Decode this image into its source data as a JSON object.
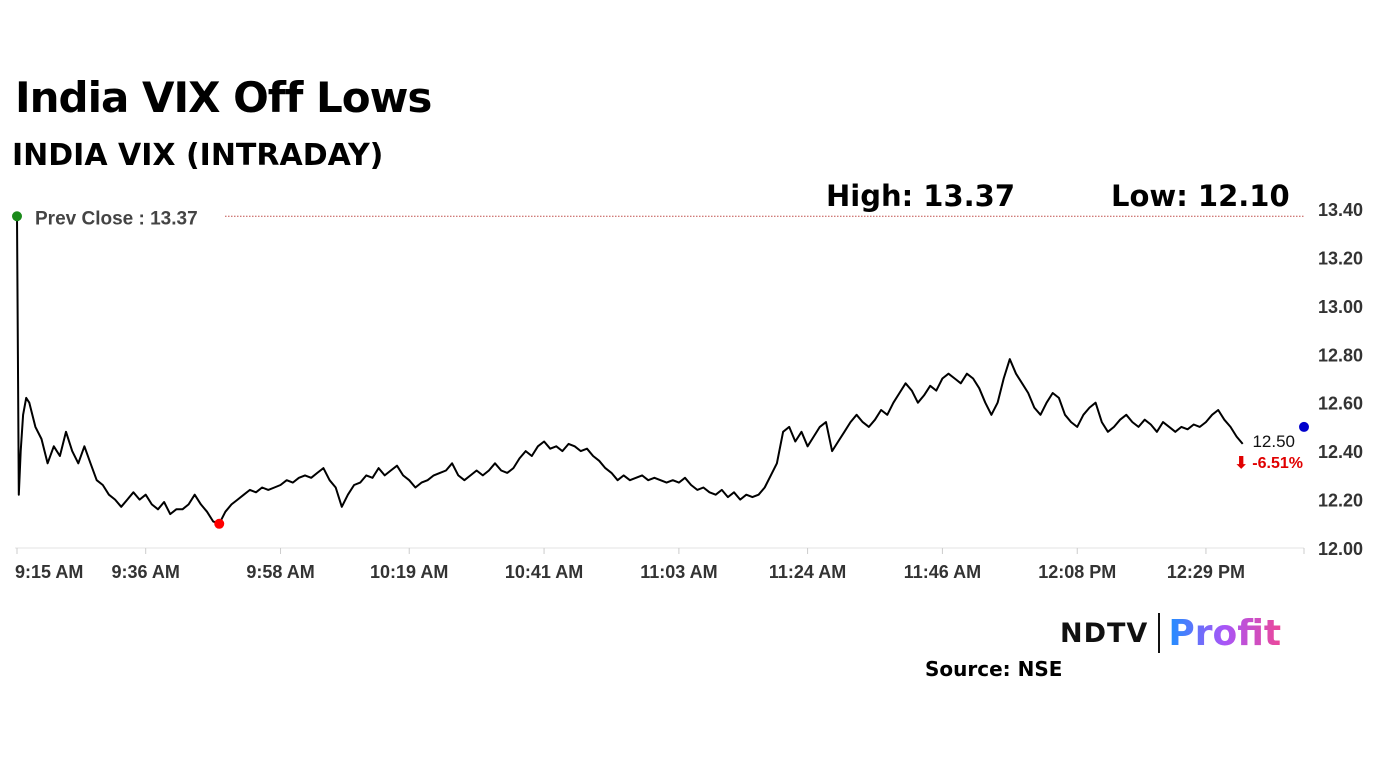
{
  "header": {
    "headline": "India VIX Off Lows",
    "subtitle": "INDIA VIX (INTRADAY)"
  },
  "stats": {
    "high_label": "High: 13.37",
    "low_label": "Low: 12.10"
  },
  "chart_data": {
    "type": "line",
    "title": "INDIA VIX (INTRADAY)",
    "ylim": [
      12.0,
      13.4
    ],
    "y_ticks": [
      "12.00",
      "12.20",
      "12.40",
      "12.60",
      "12.80",
      "13.00",
      "13.20",
      "13.40"
    ],
    "x_ticks": [
      "9:15 AM",
      "9:36 AM",
      "9:58 AM",
      "10:19 AM",
      "10:41 AM",
      "11:03 AM",
      "11:24 AM",
      "11:46 AM",
      "12:08 PM",
      "12:29 PM"
    ],
    "x_range_minutes": [
      0,
      210
    ],
    "x_tick_minutes": [
      0,
      21,
      43,
      64,
      86,
      108,
      129,
      151,
      173,
      194
    ],
    "series": [
      {
        "points": [
          [
            0,
            13.37
          ],
          [
            0.15,
            12.8
          ],
          [
            0.3,
            12.22
          ],
          [
            0.6,
            12.4
          ],
          [
            1,
            12.55
          ],
          [
            1.5,
            12.62
          ],
          [
            2,
            12.6
          ],
          [
            3,
            12.5
          ],
          [
            4,
            12.45
          ],
          [
            5,
            12.35
          ],
          [
            6,
            12.42
          ],
          [
            7,
            12.38
          ],
          [
            8,
            12.48
          ],
          [
            9,
            12.4
          ],
          [
            10,
            12.35
          ],
          [
            11,
            12.42
          ],
          [
            12,
            12.35
          ],
          [
            13,
            12.28
          ],
          [
            14,
            12.26
          ],
          [
            15,
            12.22
          ],
          [
            16,
            12.2
          ],
          [
            17,
            12.17
          ],
          [
            18,
            12.2
          ],
          [
            19,
            12.23
          ],
          [
            20,
            12.2
          ],
          [
            21,
            12.22
          ],
          [
            22,
            12.18
          ],
          [
            23,
            12.16
          ],
          [
            24,
            12.19
          ],
          [
            25,
            12.14
          ],
          [
            26,
            12.16
          ],
          [
            27,
            12.16
          ],
          [
            28,
            12.18
          ],
          [
            29,
            12.22
          ],
          [
            30,
            12.18
          ],
          [
            31,
            12.15
          ],
          [
            32,
            12.11
          ],
          [
            33,
            12.1
          ],
          [
            34,
            12.15
          ],
          [
            35,
            12.18
          ],
          [
            36,
            12.2
          ],
          [
            37,
            12.22
          ],
          [
            38,
            12.24
          ],
          [
            39,
            12.23
          ],
          [
            40,
            12.25
          ],
          [
            41,
            12.24
          ],
          [
            42,
            12.25
          ],
          [
            43,
            12.26
          ],
          [
            44,
            12.28
          ],
          [
            45,
            12.27
          ],
          [
            46,
            12.29
          ],
          [
            47,
            12.3
          ],
          [
            48,
            12.29
          ],
          [
            49,
            12.31
          ],
          [
            50,
            12.33
          ],
          [
            51,
            12.28
          ],
          [
            52,
            12.25
          ],
          [
            53,
            12.17
          ],
          [
            54,
            12.22
          ],
          [
            55,
            12.26
          ],
          [
            56,
            12.27
          ],
          [
            57,
            12.3
          ],
          [
            58,
            12.29
          ],
          [
            59,
            12.33
          ],
          [
            60,
            12.3
          ],
          [
            61,
            12.32
          ],
          [
            62,
            12.34
          ],
          [
            63,
            12.3
          ],
          [
            64,
            12.28
          ],
          [
            65,
            12.25
          ],
          [
            66,
            12.27
          ],
          [
            67,
            12.28
          ],
          [
            68,
            12.3
          ],
          [
            69,
            12.31
          ],
          [
            70,
            12.32
          ],
          [
            71,
            12.35
          ],
          [
            72,
            12.3
          ],
          [
            73,
            12.28
          ],
          [
            74,
            12.3
          ],
          [
            75,
            12.32
          ],
          [
            76,
            12.3
          ],
          [
            77,
            12.32
          ],
          [
            78,
            12.35
          ],
          [
            79,
            12.32
          ],
          [
            80,
            12.31
          ],
          [
            81,
            12.33
          ],
          [
            82,
            12.37
          ],
          [
            83,
            12.4
          ],
          [
            84,
            12.38
          ],
          [
            85,
            12.42
          ],
          [
            86,
            12.44
          ],
          [
            87,
            12.41
          ],
          [
            88,
            12.42
          ],
          [
            89,
            12.4
          ],
          [
            90,
            12.43
          ],
          [
            91,
            12.42
          ],
          [
            92,
            12.4
          ],
          [
            93,
            12.41
          ],
          [
            94,
            12.38
          ],
          [
            95,
            12.36
          ],
          [
            96,
            12.33
          ],
          [
            97,
            12.31
          ],
          [
            98,
            12.28
          ],
          [
            99,
            12.3
          ],
          [
            100,
            12.28
          ],
          [
            101,
            12.29
          ],
          [
            102,
            12.3
          ],
          [
            103,
            12.28
          ],
          [
            104,
            12.29
          ],
          [
            105,
            12.28
          ],
          [
            106,
            12.27
          ],
          [
            107,
            12.28
          ],
          [
            108,
            12.27
          ],
          [
            109,
            12.29
          ],
          [
            110,
            12.26
          ],
          [
            111,
            12.24
          ],
          [
            112,
            12.25
          ],
          [
            113,
            12.23
          ],
          [
            114,
            12.22
          ],
          [
            115,
            12.24
          ],
          [
            116,
            12.21
          ],
          [
            117,
            12.23
          ],
          [
            118,
            12.2
          ],
          [
            119,
            12.22
          ],
          [
            120,
            12.21
          ],
          [
            121,
            12.22
          ],
          [
            122,
            12.25
          ],
          [
            123,
            12.3
          ],
          [
            124,
            12.35
          ],
          [
            125,
            12.48
          ],
          [
            126,
            12.5
          ],
          [
            127,
            12.44
          ],
          [
            128,
            12.48
          ],
          [
            129,
            12.42
          ],
          [
            130,
            12.46
          ],
          [
            131,
            12.5
          ],
          [
            132,
            12.52
          ],
          [
            133,
            12.4
          ],
          [
            134,
            12.44
          ],
          [
            135,
            12.48
          ],
          [
            136,
            12.52
          ],
          [
            137,
            12.55
          ],
          [
            138,
            12.52
          ],
          [
            139,
            12.5
          ],
          [
            140,
            12.53
          ],
          [
            141,
            12.57
          ],
          [
            142,
            12.55
          ],
          [
            143,
            12.6
          ],
          [
            144,
            12.64
          ],
          [
            145,
            12.68
          ],
          [
            146,
            12.65
          ],
          [
            147,
            12.6
          ],
          [
            148,
            12.63
          ],
          [
            149,
            12.67
          ],
          [
            150,
            12.65
          ],
          [
            151,
            12.7
          ],
          [
            152,
            12.72
          ],
          [
            153,
            12.7
          ],
          [
            154,
            12.68
          ],
          [
            155,
            12.72
          ],
          [
            156,
            12.7
          ],
          [
            157,
            12.66
          ],
          [
            158,
            12.6
          ],
          [
            159,
            12.55
          ],
          [
            160,
            12.6
          ],
          [
            161,
            12.7
          ],
          [
            162,
            12.78
          ],
          [
            163,
            12.72
          ],
          [
            164,
            12.68
          ],
          [
            165,
            12.64
          ],
          [
            166,
            12.58
          ],
          [
            167,
            12.55
          ],
          [
            168,
            12.6
          ],
          [
            169,
            12.64
          ],
          [
            170,
            12.62
          ],
          [
            171,
            12.55
          ],
          [
            172,
            12.52
          ],
          [
            173,
            12.5
          ],
          [
            174,
            12.55
          ],
          [
            175,
            12.58
          ],
          [
            176,
            12.6
          ],
          [
            177,
            12.52
          ],
          [
            178,
            12.48
          ],
          [
            179,
            12.5
          ],
          [
            180,
            12.53
          ],
          [
            181,
            12.55
          ],
          [
            182,
            12.52
          ],
          [
            183,
            12.5
          ],
          [
            184,
            12.53
          ],
          [
            185,
            12.51
          ],
          [
            186,
            12.48
          ],
          [
            187,
            12.52
          ],
          [
            188,
            12.5
          ],
          [
            189,
            12.48
          ],
          [
            190,
            12.5
          ],
          [
            191,
            12.49
          ],
          [
            192,
            12.51
          ],
          [
            193,
            12.5
          ],
          [
            194,
            12.52
          ],
          [
            195,
            12.55
          ],
          [
            196,
            12.57
          ],
          [
            197,
            12.53
          ],
          [
            198,
            12.5
          ],
          [
            199,
            12.46
          ],
          [
            200,
            12.43
          ]
        ]
      }
    ],
    "prev_close": {
      "label": "Prev Close : 13.37",
      "value": 13.37
    },
    "low_point": {
      "x": 33,
      "y": 12.1
    },
    "last": {
      "label": "12.50",
      "change": "⬇ -6.51%",
      "x": 210,
      "y": 12.5
    },
    "colors": {
      "line": "#000000",
      "prev_close_line": "#c0504d",
      "start_dot": "#1a8a1a",
      "low_dot": "#ff0000",
      "end_dot": "#0000cc",
      "change_text": "#e00000",
      "axis_text": "#333333"
    }
  },
  "branding": {
    "logo_ndtv": "NDTV",
    "logo_profit": "Profit",
    "source": "Source: NSE"
  }
}
